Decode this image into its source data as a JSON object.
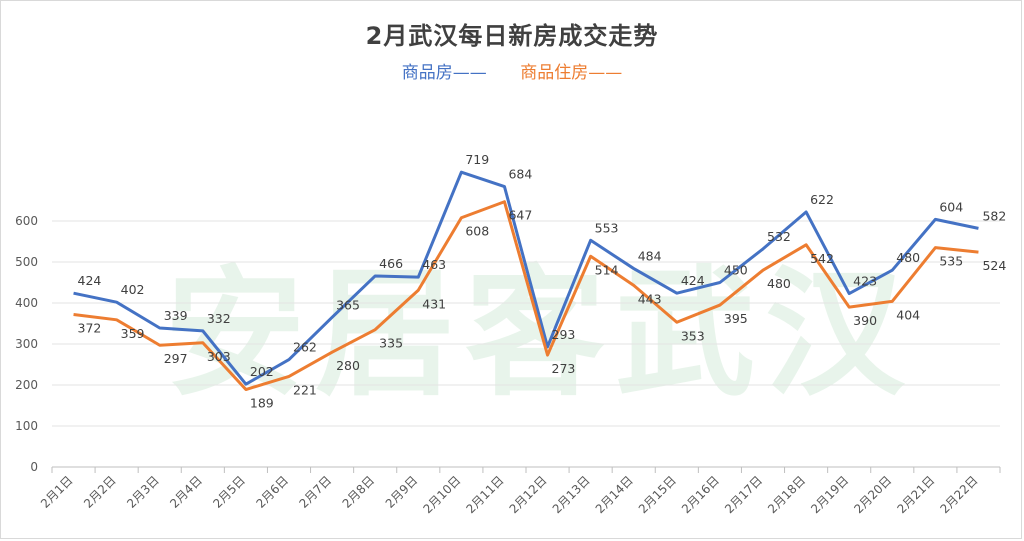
{
  "chart_data": {
    "type": "line",
    "title": "2月武汉每日新房成交走势",
    "categories": [
      "2月1日",
      "2月2日",
      "2月3日",
      "2月4日",
      "2月5日",
      "2月6日",
      "2月7日",
      "2月8日",
      "2月9日",
      "2月10日",
      "2月11日",
      "2月12日",
      "2月13日",
      "2月14日",
      "2月15日",
      "2月16日",
      "2月17日",
      "2月18日",
      "2月19日",
      "2月20日",
      "2月21日",
      "2月22日"
    ],
    "series": [
      {
        "name": "商品房——",
        "color": "#4472c4",
        "values": [
          424,
          402,
          339,
          332,
          202,
          262,
          365,
          466,
          463,
          719,
          684,
          293,
          553,
          484,
          424,
          450,
          532,
          622,
          423,
          480,
          604,
          582
        ],
        "labeled": [
          true,
          true,
          true,
          true,
          true,
          true,
          true,
          true,
          true,
          true,
          true,
          true,
          true,
          true,
          true,
          true,
          true,
          true,
          true,
          true,
          true,
          true
        ]
      },
      {
        "name": "商品住房——",
        "color": "#ed7d31",
        "values": [
          372,
          359,
          297,
          303,
          189,
          221,
          280,
          335,
          431,
          608,
          647,
          273,
          514,
          443,
          353,
          395,
          480,
          542,
          390,
          404,
          535,
          524
        ],
        "labeled": [
          true,
          true,
          true,
          true,
          true,
          true,
          true,
          true,
          true,
          true,
          true,
          true,
          true,
          true,
          true,
          true,
          true,
          true,
          true,
          true,
          true,
          true
        ]
      }
    ],
    "y_ticks": [
      "0",
      "100",
      "200",
      "300",
      "400",
      "500",
      "600"
    ],
    "ylim": [
      0,
      600
    ],
    "grid": true,
    "legend_position": "top-center",
    "watermark": "安居客武汉"
  }
}
